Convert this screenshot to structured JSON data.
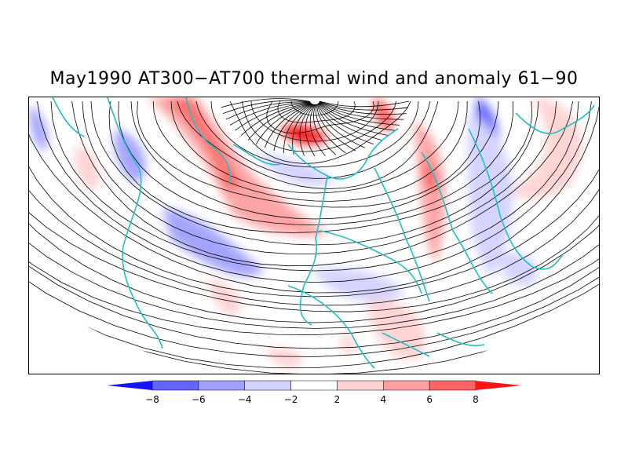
{
  "title": "May1990 AT300−AT700 thermal wind and anomaly 61−90",
  "colorbar": {
    "labels": [
      "−8",
      "−6",
      "−4",
      "−2",
      "2",
      "4",
      "6",
      "8"
    ],
    "colors": [
      "#1414ff",
      "#6464ff",
      "#a0a0ff",
      "#d2d2ff",
      "#ffffff",
      "#ffd2d2",
      "#ffa0a0",
      "#ff6464",
      "#ff1414"
    ]
  },
  "map": {
    "coastline_color": "#20c0c0",
    "streamline_color": "#000000"
  }
}
